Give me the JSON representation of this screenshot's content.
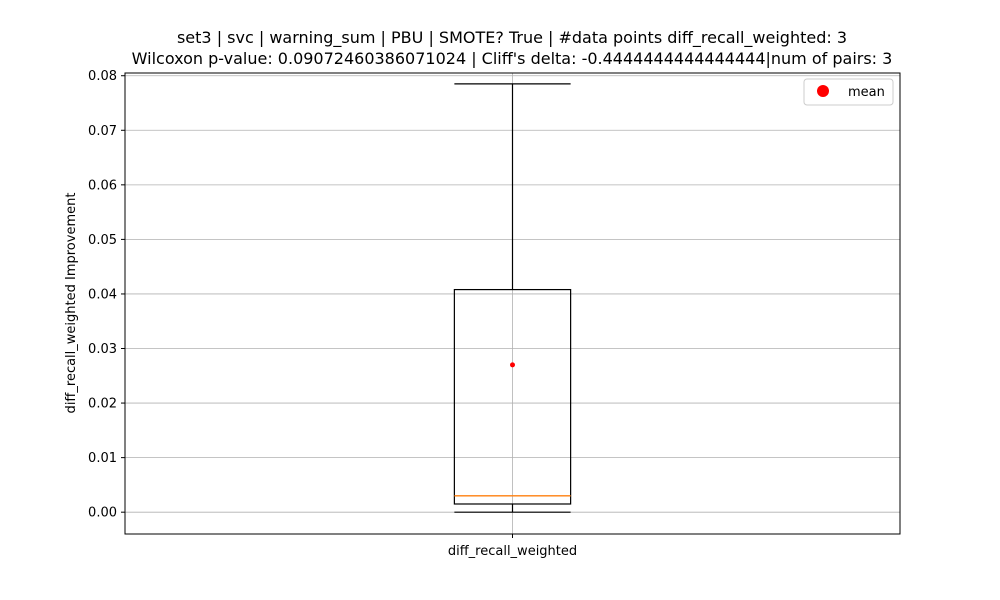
{
  "chart_data": {
    "type": "box",
    "title_lines": [
      "set3 | svc | warning_sum | PBU | SMOTE? True | #data points diff_recall_weighted: 3",
      "Wilcoxon p-value: 0.09072460386071024 | Cliff's delta: -0.4444444444444444|num of pairs: 3"
    ],
    "xlabel": "",
    "ylabel": "diff_recall_weighted Improvement",
    "categories": [
      "diff_recall_weighted"
    ],
    "ylim": [
      -0.004,
      0.0805
    ],
    "yticks": [
      0.0,
      0.01,
      0.02,
      0.03,
      0.04,
      0.05,
      0.06,
      0.07,
      0.08
    ],
    "ytick_labels": [
      "0.00",
      "0.01",
      "0.02",
      "0.03",
      "0.04",
      "0.05",
      "0.06",
      "0.07",
      "0.08"
    ],
    "grid": true,
    "boxes": [
      {
        "category": "diff_recall_weighted",
        "whisker_low": 0.0,
        "q1": 0.0015,
        "median": 0.003,
        "q3": 0.0408,
        "whisker_high": 0.0785,
        "mean": 0.027
      }
    ],
    "legend": {
      "placement": "top-right",
      "entries": [
        {
          "label": "mean",
          "marker": "circle",
          "color": "#ff0000"
        }
      ]
    },
    "colors": {
      "box": "#000000",
      "median": "#ff7f0e",
      "mean": "#ff0000",
      "grid": "#b0b0b0"
    }
  }
}
